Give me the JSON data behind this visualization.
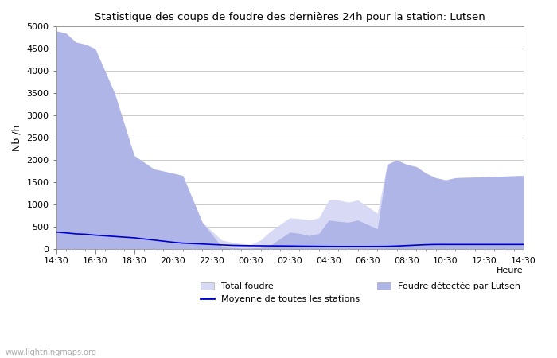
{
  "title": "Statistique des coups de foudre des dernières 24h pour la station: Lutsen",
  "xlabel": "Heure",
  "ylabel": "Nb /h",
  "ylim": [
    0,
    5000
  ],
  "background_color": "#ffffff",
  "plot_bg_color": "#ffffff",
  "grid_color": "#cccccc",
  "x_ticks_labels": [
    "14:30",
    "16:30",
    "18:30",
    "20:30",
    "22:30",
    "00:30",
    "02:30",
    "04:30",
    "06:30",
    "08:30",
    "10:30",
    "12:30",
    "14:30"
  ],
  "total_foudre_color": "#d8daf5",
  "lutsen_foudre_color": "#b0b5e8",
  "moyenne_color": "#0000cc",
  "legend_entries": [
    "Total foudre",
    "Moyenne de toutes les stations",
    "Foudre détectée par Lutsen"
  ],
  "watermark": "www.lightningmaps.org",
  "total_foudre": [
    4900,
    4850,
    4650,
    4600,
    4500,
    3500,
    2100,
    1800,
    1750,
    1700,
    1650,
    600,
    200,
    150,
    120,
    100,
    200,
    400,
    700,
    680,
    650,
    700,
    1100,
    1100,
    1050,
    1100,
    950,
    800,
    1900,
    2000,
    1900,
    1850,
    1700,
    1600,
    1550,
    1600,
    1650
  ],
  "lutsen_foudre": [
    4900,
    4850,
    4650,
    4600,
    4500,
    3500,
    2100,
    1800,
    1750,
    1700,
    1650,
    600,
    50,
    30,
    20,
    20,
    30,
    80,
    380,
    350,
    300,
    350,
    650,
    620,
    600,
    650,
    550,
    450,
    1900,
    2000,
    1900,
    1850,
    1700,
    1600,
    1550,
    1600,
    1650
  ],
  "moyenne": [
    380,
    360,
    340,
    330,
    310,
    280,
    250,
    200,
    175,
    150,
    130,
    110,
    90,
    80,
    75,
    72,
    70,
    68,
    65,
    62,
    60,
    58,
    56,
    55,
    55,
    55,
    55,
    56,
    58,
    65,
    75,
    85,
    95,
    100,
    100,
    100,
    100
  ],
  "x_numeric": [
    0,
    1,
    2,
    3,
    4,
    6,
    8,
    10,
    11,
    12,
    13,
    15,
    17,
    18,
    19,
    20,
    21,
    22,
    24,
    25,
    26,
    27,
    28,
    29,
    30,
    31,
    32,
    33,
    34,
    35,
    36,
    37,
    38,
    39,
    40,
    41,
    48
  ]
}
